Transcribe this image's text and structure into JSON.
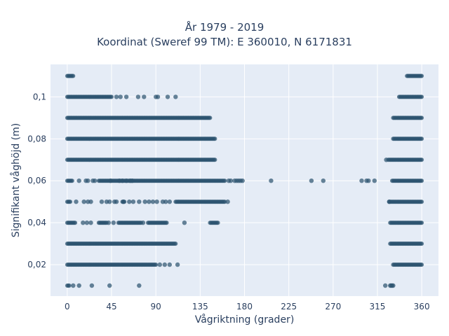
{
  "chart_data": {
    "type": "scatter",
    "title": "År 1979 - 2019",
    "subtitle": "Koordinat (Sweref 99 TM): E 360010, N 6171831",
    "xlabel": "Vågriktning (grader)",
    "ylabel": "Signifikant våghöjd (m)",
    "xlim": [
      -17,
      377
    ],
    "ylim": [
      0.005,
      0.1155
    ],
    "x_ticks": [
      0,
      45,
      90,
      135,
      180,
      225,
      270,
      315,
      360
    ],
    "x_tick_labels": [
      "0",
      "45",
      "90",
      "135",
      "180",
      "225",
      "270",
      "315",
      "360"
    ],
    "y_ticks": [
      0.02,
      0.04,
      0.06,
      0.08,
      0.1
    ],
    "y_tick_labels": [
      "0,02",
      "0,04",
      "0,06",
      "0,08",
      "0,1"
    ],
    "grid": true,
    "legend": "none",
    "colors": {
      "marker": "#2e5470",
      "plot_bg": "#e5ecf6",
      "grid": "#ffffff",
      "text": "#2a3f5f"
    },
    "bands": [
      {
        "y": 0.01,
        "ranges": [
          [
            0,
            2
          ]
        ],
        "x": [
          6,
          12,
          25,
          43,
          73,
          323,
          328,
          329,
          330,
          331
        ]
      },
      {
        "y": 0.02,
        "ranges": [
          [
            0,
            90
          ],
          [
            331,
            360
          ]
        ],
        "x": [
          94,
          99,
          104,
          112
        ]
      },
      {
        "y": 0.03,
        "ranges": [
          [
            0,
            110
          ],
          [
            328,
            360
          ]
        ],
        "x": []
      },
      {
        "y": 0.04,
        "ranges": [
          [
            0,
            8
          ],
          [
            32,
            40
          ],
          [
            52,
            75
          ],
          [
            82,
            101
          ],
          [
            145,
            153
          ],
          [
            328,
            360
          ]
        ],
        "x": [
          16,
          20,
          24,
          42,
          47,
          77,
          119
        ]
      },
      {
        "y": 0.05,
        "ranges": [
          [
            0,
            3
          ],
          [
            56,
            58
          ],
          [
            110,
            160
          ],
          [
            327,
            360
          ]
        ],
        "x": [
          9,
          17,
          21,
          24,
          35,
          40,
          43,
          48,
          50,
          57,
          63,
          67,
          73,
          79,
          83,
          87,
          91,
          97,
          100,
          104,
          163,
          327
        ]
      },
      {
        "y": 0.06,
        "ranges": [
          [
            0,
            5
          ],
          [
            32,
            160
          ],
          [
            330,
            360
          ]
        ],
        "x": [
          12,
          19,
          21,
          26,
          28,
          44,
          53,
          56,
          60,
          64,
          66,
          164,
          166,
          170,
          172,
          174,
          176,
          178,
          207,
          248,
          260,
          299,
          304,
          306,
          312
        ]
      },
      {
        "y": 0.07,
        "ranges": [
          [
            0,
            150
          ],
          [
            326,
            360
          ]
        ],
        "x": [
          324
        ]
      },
      {
        "y": 0.08,
        "ranges": [
          [
            0,
            150
          ],
          [
            331,
            360
          ]
        ],
        "x": []
      },
      {
        "y": 0.09,
        "ranges": [
          [
            0,
            145
          ],
          [
            331,
            360
          ]
        ],
        "x": []
      },
      {
        "y": 0.1,
        "ranges": [
          [
            0,
            45
          ],
          [
            337,
            360
          ]
        ],
        "x": [
          50,
          54,
          60,
          72,
          78,
          90,
          92,
          102,
          110
        ]
      },
      {
        "y": 0.11,
        "ranges": [
          [
            0,
            6
          ],
          [
            345,
            360
          ]
        ],
        "x": []
      }
    ]
  }
}
